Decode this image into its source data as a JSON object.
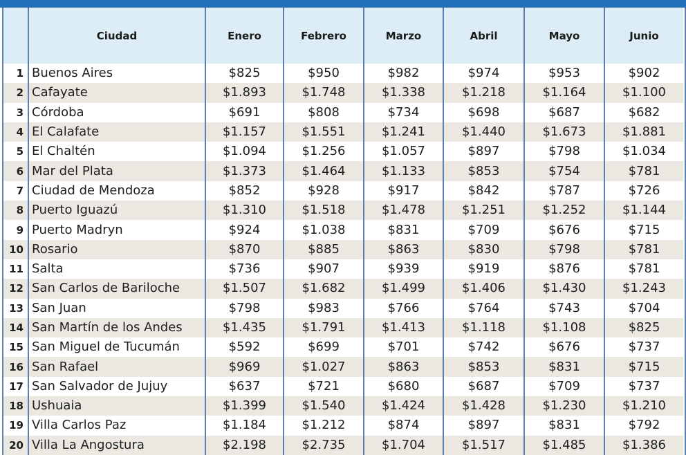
{
  "header": {
    "columns": [
      "",
      "Ciudad",
      "Enero",
      "Febrero",
      "Marzo",
      "Abril",
      "Mayo",
      "Junio"
    ]
  },
  "rows": [
    {
      "n": "1",
      "city": "Buenos Aires",
      "v": [
        "$825",
        "$950",
        "$982",
        "$974",
        "$953",
        "$902"
      ]
    },
    {
      "n": "2",
      "city": "Cafayate",
      "v": [
        "$1.893",
        "$1.748",
        "$1.338",
        "$1.218",
        "$1.164",
        "$1.100"
      ]
    },
    {
      "n": "3",
      "city": "Córdoba",
      "v": [
        "$691",
        "$808",
        "$734",
        "$698",
        "$687",
        "$682"
      ]
    },
    {
      "n": "4",
      "city": "El Calafate",
      "v": [
        "$1.157",
        "$1.551",
        "$1.241",
        "$1.440",
        "$1.673",
        "$1.881"
      ]
    },
    {
      "n": "5",
      "city": "El Chaltén",
      "v": [
        "$1.094",
        "$1.256",
        "$1.057",
        "$897",
        "$798",
        "$1.034"
      ]
    },
    {
      "n": "6",
      "city": "Mar del Plata",
      "v": [
        "$1.373",
        "$1.464",
        "$1.133",
        "$853",
        "$754",
        "$781"
      ]
    },
    {
      "n": "7",
      "city": "Ciudad de Mendoza",
      "v": [
        "$852",
        "$928",
        "$917",
        "$842",
        "$787",
        "$726"
      ]
    },
    {
      "n": "8",
      "city": "Puerto Iguazú",
      "v": [
        "$1.310",
        "$1.518",
        "$1.478",
        "$1.251",
        "$1.252",
        "$1.144"
      ]
    },
    {
      "n": "9",
      "city": "Puerto Madryn",
      "v": [
        "$924",
        "$1.038",
        "$831",
        "$709",
        "$676",
        "$715"
      ]
    },
    {
      "n": "10",
      "city": "Rosario",
      "v": [
        "$870",
        "$885",
        "$863",
        "$830",
        "$798",
        "$781"
      ]
    },
    {
      "n": "11",
      "city": "Salta",
      "v": [
        "$736",
        "$907",
        "$939",
        "$919",
        "$876",
        "$781"
      ]
    },
    {
      "n": "12",
      "city": "San Carlos de Bariloche",
      "v": [
        "$1.507",
        "$1.682",
        "$1.499",
        "$1.406",
        "$1.430",
        "$1.243"
      ]
    },
    {
      "n": "13",
      "city": "San Juan",
      "v": [
        "$798",
        "$983",
        "$766",
        "$764",
        "$743",
        "$704"
      ]
    },
    {
      "n": "14",
      "city": "San Martín de los Andes",
      "v": [
        "$1.435",
        "$1.791",
        "$1.413",
        "$1.118",
        "$1.108",
        "$825"
      ]
    },
    {
      "n": "15",
      "city": "San Miguel de Tucumán",
      "v": [
        "$592",
        "$699",
        "$701",
        "$742",
        "$676",
        "$737"
      ]
    },
    {
      "n": "16",
      "city": "San Rafael",
      "v": [
        "$969",
        "$1.027",
        "$863",
        "$853",
        "$831",
        "$715"
      ]
    },
    {
      "n": "17",
      "city": "San Salvador de Jujuy",
      "v": [
        "$637",
        "$721",
        "$680",
        "$687",
        "$709",
        "$737"
      ]
    },
    {
      "n": "18",
      "city": "Ushuaia",
      "v": [
        "$1.399",
        "$1.540",
        "$1.424",
        "$1.428",
        "$1.230",
        "$1.210"
      ]
    },
    {
      "n": "19",
      "city": "Villa Carlos Paz",
      "v": [
        "$1.184",
        "$1.212",
        "$874",
        "$897",
        "$831",
        "$792"
      ]
    },
    {
      "n": "20",
      "city": "Villa La Angostura",
      "v": [
        "$2.198",
        "$2.735",
        "$1.704",
        "$1.517",
        "$1.485",
        "$1.386"
      ]
    }
  ],
  "colors": {
    "topbar": "#2170b8",
    "header_bg": "#dcedf6",
    "row_alt": "#ebe8e1",
    "grid_line": "#5b7fb0"
  }
}
